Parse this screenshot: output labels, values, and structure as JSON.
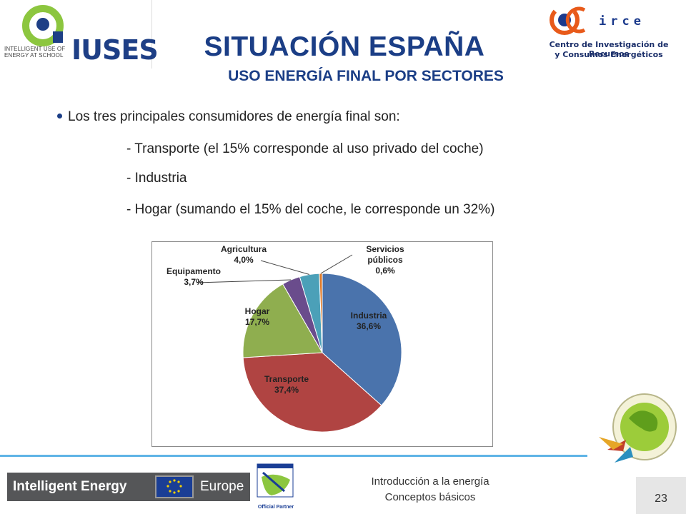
{
  "header": {
    "iuses_brand": "IUSES",
    "iuses_tag": "INTELLIGENT USE OF ENERGY AT SCHOOL",
    "circe_word": "irce",
    "circe_line1": "Centro de Investigación de Recursos",
    "circe_line2": "y Consumos Energéticos"
  },
  "slide": {
    "title": "SITUACIÓN ESPAÑA",
    "subtitle": "USO ENERGÍA FINAL POR SECTORES",
    "bullet": "Los tres principales consumidores de energía final son:",
    "items": [
      "- Transporte (el 15% corresponde al uso privado del coche)",
      "- Industria",
      "- Hogar (sumando el 15% del coche, le corresponde un 32%)"
    ]
  },
  "chart_data": {
    "type": "pie",
    "title": "",
    "slices": [
      {
        "name": "Industria",
        "value": 36.6,
        "label": "36,6%",
        "color": "#4a73ac"
      },
      {
        "name": "Transporte",
        "value": 37.4,
        "label": "37,4%",
        "color": "#b04442"
      },
      {
        "name": "Hogar",
        "value": 17.7,
        "label": "17,7%",
        "color": "#8fae4f"
      },
      {
        "name": "Equipamento",
        "value": 3.7,
        "label": "3,7%",
        "color": "#6a4c8c"
      },
      {
        "name": "Agricultura",
        "value": 4.0,
        "label": "4,0%",
        "color": "#4ba0b8"
      },
      {
        "name": "Servicios públicos",
        "value": 0.6,
        "label": "0,6%",
        "color": "#e07b2a"
      }
    ]
  },
  "footer": {
    "banner_left": "Intelligent Energy",
    "banner_right": "Europe",
    "partner_caption": "Official Partner",
    "line1": "Introducción a la energía",
    "line2": "Conceptos básicos",
    "page": "23"
  },
  "colors": {
    "title_blue": "#1b3e86",
    "rule_blue": "#5fb4e6"
  }
}
